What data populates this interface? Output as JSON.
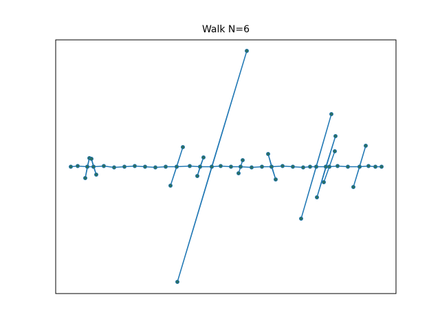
{
  "chart_data": {
    "type": "line",
    "title": "Walk N=6",
    "xlim": [
      0,
      495
    ],
    "ylim": [
      -184.5,
      184.5
    ],
    "series": [
      {
        "color": "#1f77b4",
        "marker_color": "#2b6e63",
        "x": [
          22,
          32,
          46,
          43,
          49,
          46,
          55,
          52,
          59,
          55,
          70,
          85,
          100,
          115,
          130,
          145,
          160,
          176,
          167,
          185,
          176,
          195,
          210,
          206,
          215,
          210,
          227,
          177,
          278,
          227,
          240,
          255,
          269,
          266,
          272,
          269,
          285,
          300,
          314,
          309,
          320,
          314,
          330,
          345,
          360,
          370,
          379,
          357,
          401,
          379,
          393,
          380,
          407,
          393,
          398,
          390,
          406,
          398,
          410,
          425,
          442,
          433,
          451,
          442,
          455,
          465,
          474
        ],
        "values": [
          0,
          1,
          0,
          -16.5,
          12.5,
          0,
          0,
          11.5,
          -11.5,
          0,
          1,
          -1,
          0,
          1,
          0,
          -1,
          0,
          0,
          -27.5,
          28.5,
          0,
          1,
          0,
          -13.5,
          13.5,
          0,
          0,
          -167.5,
          168.5,
          0,
          1,
          0,
          0,
          -9.5,
          9.5,
          0,
          -1,
          0,
          0,
          18.5,
          -18.5,
          0,
          1,
          0,
          -1,
          0,
          0,
          -75.5,
          76.5,
          0,
          0,
          -44.5,
          44.5,
          0,
          0,
          -22.5,
          22.5,
          0,
          1,
          0,
          0,
          -29.5,
          30.5,
          0,
          1,
          0,
          0
        ]
      }
    ]
  }
}
